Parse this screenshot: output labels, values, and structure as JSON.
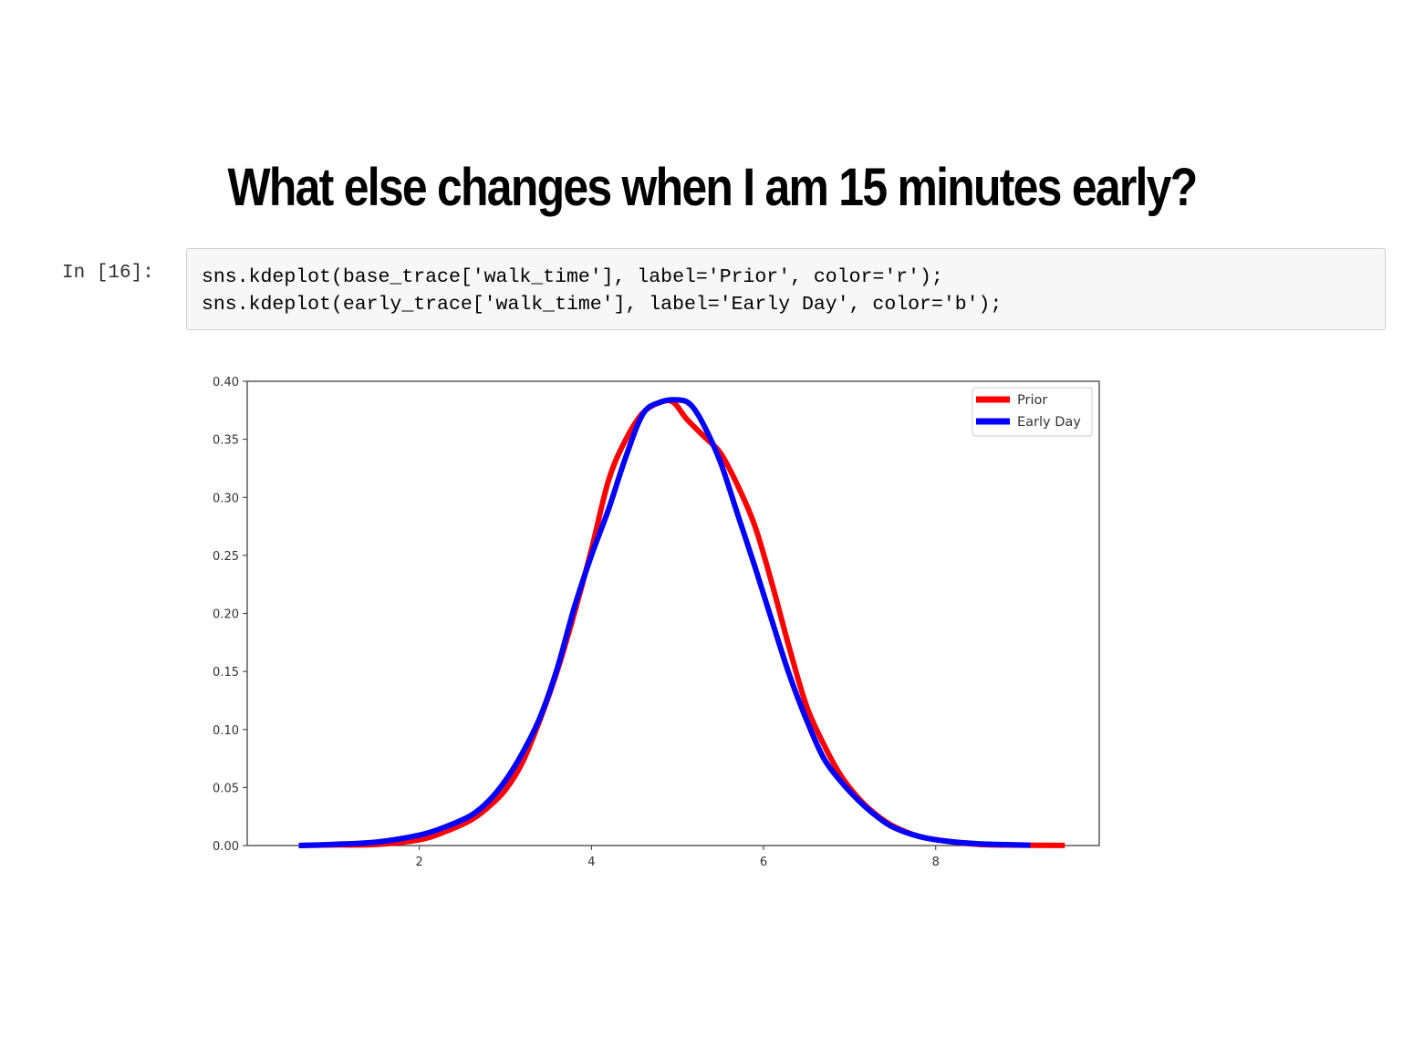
{
  "slide": {
    "title": "What else changes when I am 15 minutes early?"
  },
  "cell": {
    "prompt": "In [16]:",
    "code_lines": [
      "sns.kdeplot(base_trace['walk_time'], label='Prior', color='r');",
      "sns.kdeplot(early_trace['walk_time'], label='Early Day', color='b');"
    ]
  },
  "chart_data": {
    "type": "line",
    "title": "",
    "xlabel": "",
    "ylabel": "",
    "xlim": [
      0.0,
      9.9
    ],
    "ylim": [
      0.0,
      0.4
    ],
    "x_ticks": [
      2,
      4,
      6,
      8
    ],
    "x_tick_labels": [
      "2",
      "4",
      "6",
      "8"
    ],
    "y_ticks": [
      0.0,
      0.05,
      0.1,
      0.15,
      0.2,
      0.25,
      0.3,
      0.35,
      0.4
    ],
    "y_tick_labels": [
      "0.00",
      "0.05",
      "0.10",
      "0.15",
      "0.20",
      "0.25",
      "0.30",
      "0.35",
      "0.40"
    ],
    "grid": false,
    "legend_position": "top-right",
    "series": [
      {
        "name": "Prior",
        "color": "#ff0000",
        "x": [
          0.6,
          1.0,
          1.5,
          2.0,
          2.3,
          2.6,
          2.8,
          3.0,
          3.2,
          3.4,
          3.6,
          3.8,
          4.0,
          4.2,
          4.4,
          4.6,
          4.8,
          4.95,
          5.1,
          5.3,
          5.5,
          5.7,
          5.9,
          6.1,
          6.3,
          6.5,
          6.7,
          6.9,
          7.1,
          7.3,
          7.5,
          7.8,
          8.1,
          8.5,
          9.0,
          9.5
        ],
        "y": [
          0.0,
          0.0005,
          0.001,
          0.005,
          0.012,
          0.022,
          0.033,
          0.048,
          0.072,
          0.108,
          0.15,
          0.2,
          0.255,
          0.315,
          0.35,
          0.373,
          0.382,
          0.382,
          0.368,
          0.353,
          0.338,
          0.31,
          0.275,
          0.225,
          0.17,
          0.12,
          0.087,
          0.06,
          0.041,
          0.027,
          0.017,
          0.008,
          0.004,
          0.001,
          0.0003,
          0.0001
        ]
      },
      {
        "name": "Early Day",
        "color": "#0000ff",
        "x": [
          0.6,
          1.0,
          1.5,
          2.0,
          2.3,
          2.6,
          2.8,
          3.0,
          3.2,
          3.4,
          3.6,
          3.8,
          4.0,
          4.2,
          4.4,
          4.6,
          4.8,
          5.0,
          5.15,
          5.3,
          5.5,
          5.7,
          5.9,
          6.1,
          6.3,
          6.5,
          6.7,
          6.9,
          7.1,
          7.3,
          7.5,
          7.8,
          8.1,
          8.5,
          9.0,
          9.1
        ],
        "y": [
          0.0,
          0.001,
          0.003,
          0.009,
          0.016,
          0.026,
          0.038,
          0.056,
          0.08,
          0.11,
          0.152,
          0.205,
          0.25,
          0.29,
          0.335,
          0.372,
          0.382,
          0.384,
          0.38,
          0.363,
          0.33,
          0.285,
          0.24,
          0.193,
          0.147,
          0.108,
          0.075,
          0.055,
          0.039,
          0.026,
          0.016,
          0.008,
          0.004,
          0.0015,
          0.0005,
          0.0003
        ]
      }
    ]
  }
}
